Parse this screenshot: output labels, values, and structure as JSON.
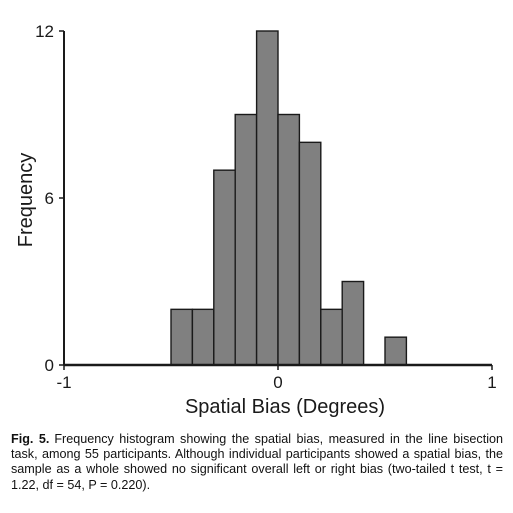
{
  "chart_data": {
    "type": "bar",
    "subtype": "histogram",
    "xlabel": "Spatial Bias (Degrees)",
    "ylabel": "Frequency",
    "xlim": [
      -1,
      1
    ],
    "ylim": [
      0,
      12
    ],
    "xticks": [
      "-1",
      "0",
      "1"
    ],
    "yticks": [
      "0",
      "6",
      "12"
    ],
    "bin_width": 0.1,
    "bins": [
      {
        "start": -0.5,
        "end": -0.4,
        "count": 2
      },
      {
        "start": -0.4,
        "end": -0.3,
        "count": 2
      },
      {
        "start": -0.3,
        "end": -0.2,
        "count": 7
      },
      {
        "start": -0.2,
        "end": -0.1,
        "count": 9
      },
      {
        "start": -0.1,
        "end": 0.0,
        "count": 12
      },
      {
        "start": 0.0,
        "end": 0.1,
        "count": 9
      },
      {
        "start": 0.1,
        "end": 0.2,
        "count": 8
      },
      {
        "start": 0.2,
        "end": 0.3,
        "count": 2
      },
      {
        "start": 0.3,
        "end": 0.4,
        "count": 3
      },
      {
        "start": 0.5,
        "end": 0.6,
        "count": 1
      }
    ],
    "bar_color": "#808080",
    "edge_color": "#1a1a1a",
    "grid": false
  },
  "caption": {
    "label": "Fig. 5.",
    "text": "Frequency histogram showing the spatial bias, measured in the line bisection task, among 55 participants. Although individual participants showed a spatial bias, the sample as a whole showed no significant overall left or right bias (two-tailed t test, t = 1.22, df = 54, P = 0.220)."
  }
}
